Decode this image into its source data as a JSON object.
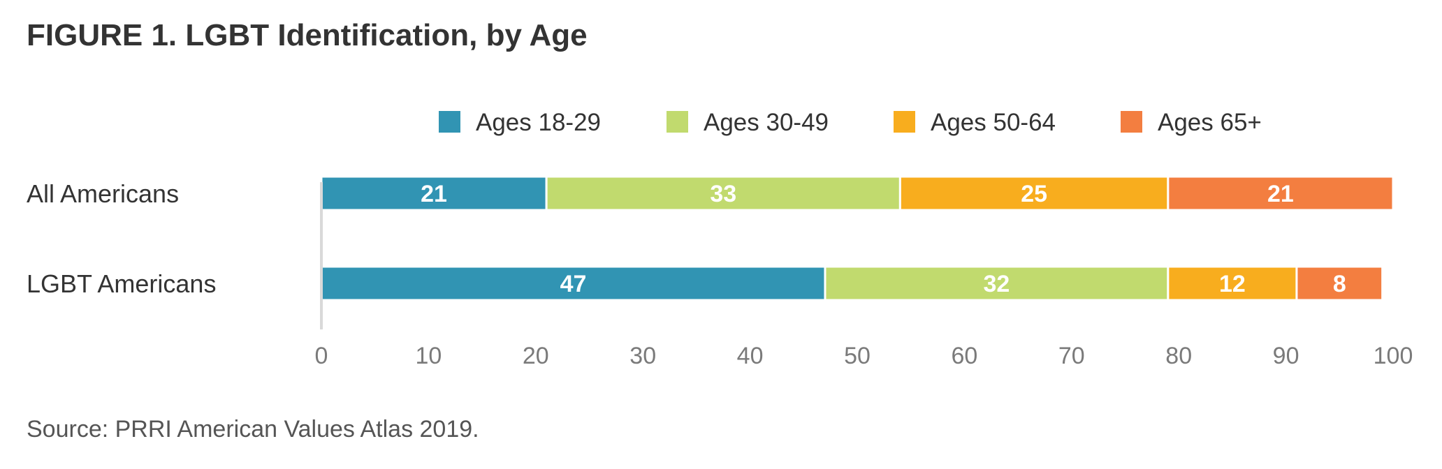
{
  "title": "FIGURE 1. LGBT Identification, by Age",
  "source": "Source: PRRI American Values Atlas 2019.",
  "chart_data": {
    "type": "bar",
    "orientation": "horizontal",
    "stacked": true,
    "categories": [
      "All Americans",
      "LGBT Americans"
    ],
    "series": [
      {
        "name": "Ages 18-29",
        "color": "#3194b3",
        "values": [
          21,
          47
        ]
      },
      {
        "name": "Ages 30-49",
        "color": "#c1da6e",
        "values": [
          33,
          32
        ]
      },
      {
        "name": "Ages 50-64",
        "color": "#f8ad1e",
        "values": [
          25,
          12
        ]
      },
      {
        "name": "Ages 65+",
        "color": "#f37e40",
        "values": [
          21,
          8
        ]
      }
    ],
    "xlim": [
      0,
      100
    ],
    "xticks": [
      0,
      10,
      20,
      30,
      40,
      50,
      60,
      70,
      80,
      90,
      100
    ],
    "legend_position": "top",
    "grid": false,
    "data_labels": true
  }
}
